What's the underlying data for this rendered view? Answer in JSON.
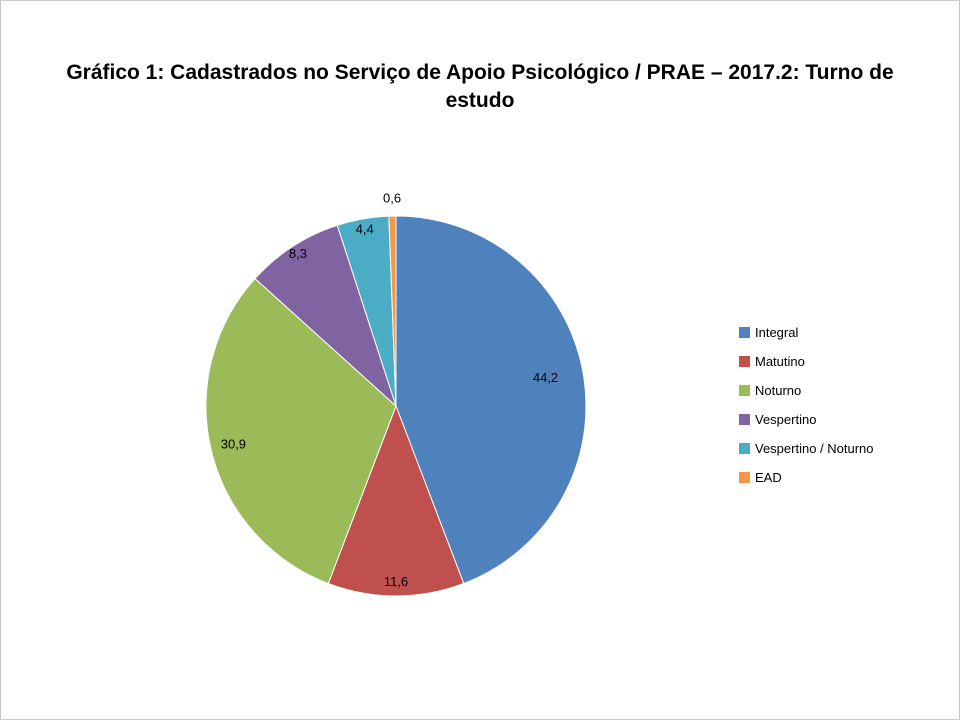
{
  "chart_data": {
    "type": "pie",
    "title": "Gráfico 1: Cadastrados no Serviço de Apoio Psicológico / PRAE – 2017.2: Turno de estudo",
    "legend_position": "right",
    "start_angle_deg": 0,
    "direction": "clockwise",
    "categories": [
      "Integral",
      "Matutino",
      "Noturno",
      "Vespertino",
      "Vespertino / Noturno",
      "EAD"
    ],
    "values": [
      44.2,
      11.6,
      30.9,
      8.3,
      4.4,
      0.6
    ],
    "labels": [
      "44,2",
      "11,6",
      "30,9",
      "8,3",
      "4,4",
      "0,6"
    ],
    "colors": [
      "#4F81BD",
      "#C0504D",
      "#9BBB59",
      "#8064A2",
      "#4BACC6",
      "#F79646"
    ],
    "total": 100.0
  }
}
